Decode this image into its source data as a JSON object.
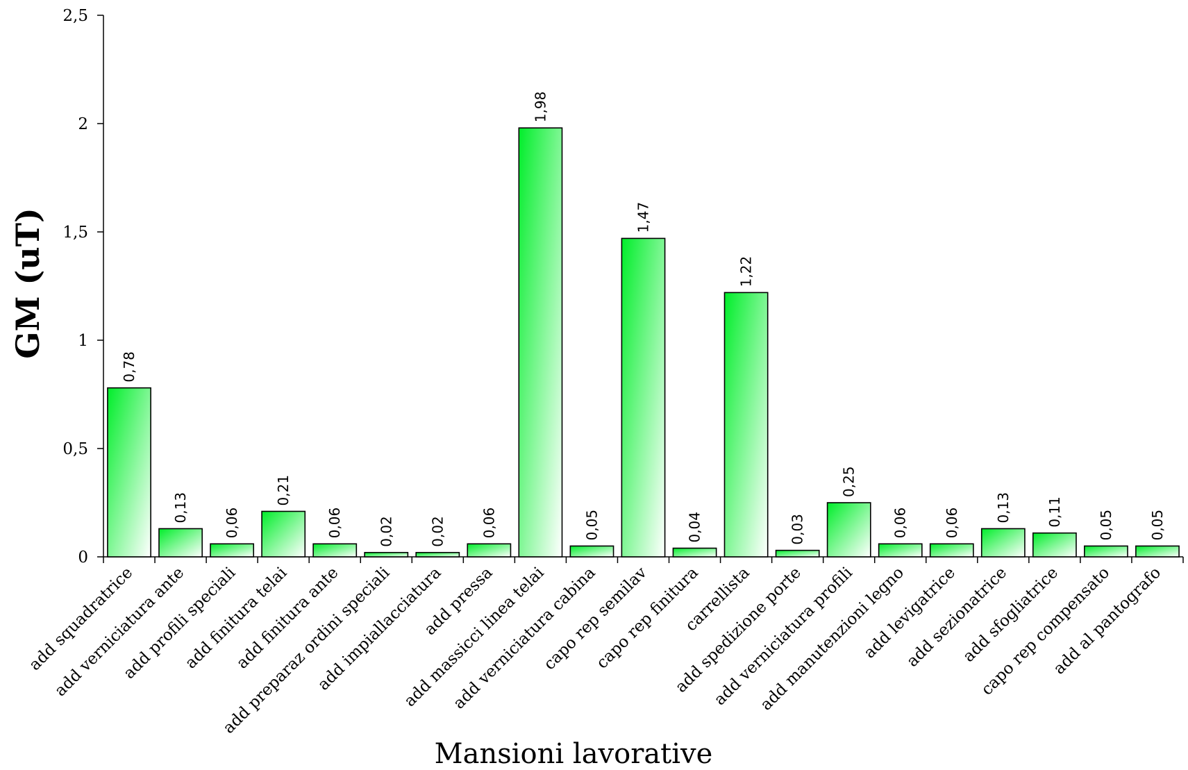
{
  "chart_data": {
    "type": "bar",
    "title": "",
    "xlabel": "Mansioni lavorative",
    "ylabel": "GM (uT)",
    "ylim": [
      0,
      2.5
    ],
    "yticks": [
      0,
      0.5,
      1,
      1.5,
      2,
      2.5
    ],
    "ytick_labels": [
      "0",
      "0,5",
      "1",
      "1,5",
      "2",
      "2,5"
    ],
    "grid": false,
    "legend": "none",
    "bar_gradient": [
      "#00ee2a",
      "#ffffff"
    ],
    "categories": [
      "add squadratrice",
      "add verniciatura ante",
      "add profili speciali",
      "add finitura telai",
      "add finitura ante",
      "add preparaz ordini speciali",
      "add impiallacciatura",
      "add pressa",
      "add massicci linea telai",
      "add verniciatura cabina",
      "capo rep semilav",
      "capo rep finitura",
      "carrellista",
      "add spedizione porte",
      "add verniciatura profili",
      "add manutenzioni legno",
      "add levigatrice",
      "add sezionatrice",
      "add sfogliatrice",
      "capo rep compensato",
      "add al pantografo"
    ],
    "values": [
      0.78,
      0.13,
      0.06,
      0.21,
      0.06,
      0.02,
      0.02,
      0.06,
      1.98,
      0.05,
      1.47,
      0.04,
      1.22,
      0.03,
      0.25,
      0.06,
      0.06,
      0.13,
      0.11,
      0.05,
      0.05
    ],
    "value_labels": [
      "0,78",
      "0,13",
      "0,06",
      "0,21",
      "0,06",
      "0,02",
      "0,02",
      "0,06",
      "1,98",
      "0,05",
      "1,47",
      "0,04",
      "1,22",
      "0,03",
      "0,25",
      "0,06",
      "0,06",
      "0,13",
      "0,11",
      "0,05",
      "0,05"
    ]
  }
}
